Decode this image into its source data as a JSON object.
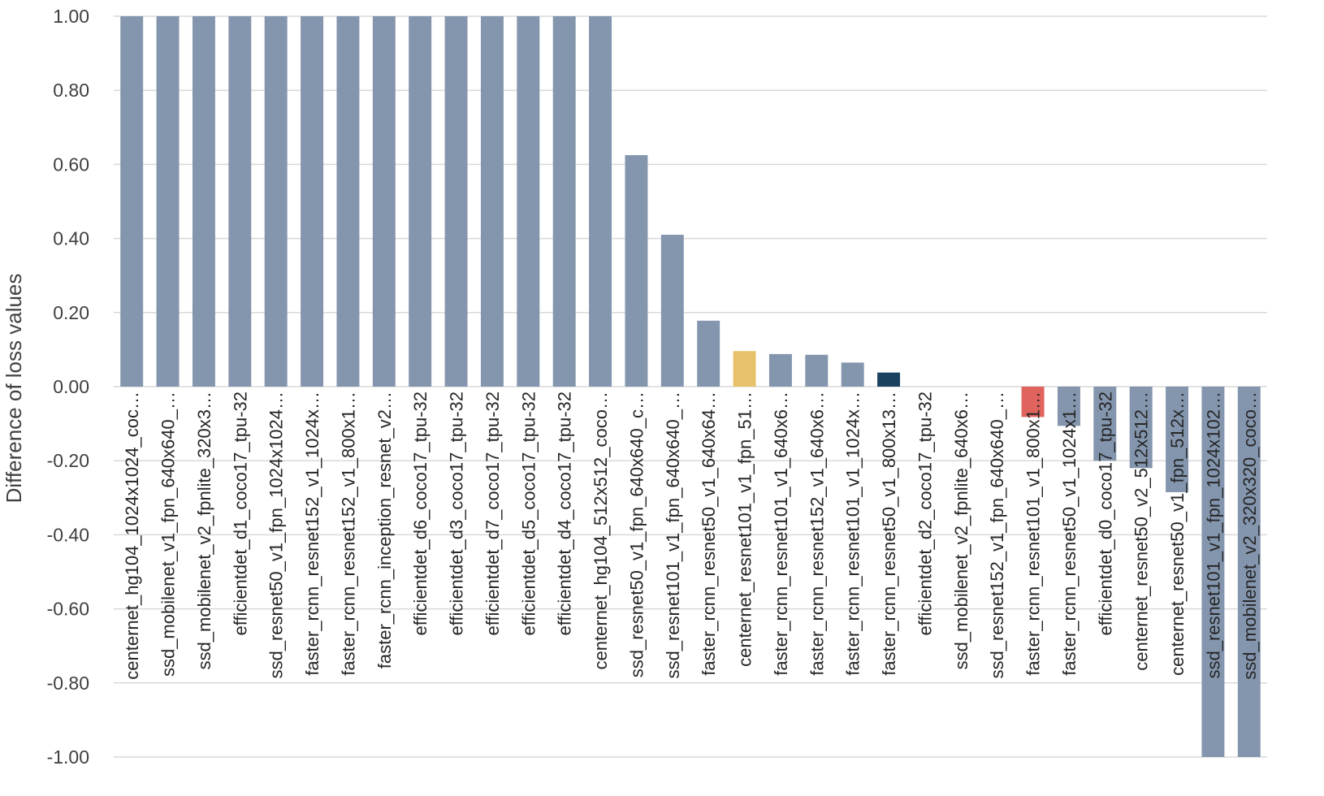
{
  "chart_data": {
    "type": "bar",
    "title": "",
    "xlabel": "",
    "ylabel": "Difference of loss values",
    "ylim": [
      -1.0,
      1.0
    ],
    "yticks": [
      "1.00",
      "0.80",
      "0.60",
      "0.40",
      "0.20",
      "0.00",
      "-0.20",
      "-0.40",
      "-0.60",
      "-0.80",
      "-1.00"
    ],
    "grid": true,
    "legend": "none",
    "categories": [
      "centernet_hg104_1024x1024_coc…",
      "ssd_mobilenet_v1_fpn_640x640_…",
      "ssd_mobilenet_v2_fpnlite_320x3…",
      "efficientdet_d1_coco17_tpu-32",
      "ssd_resnet50_v1_fpn_1024x1024…",
      "faster_rcnn_resnet152_v1_1024x…",
      "faster_rcnn_resnet152_v1_800x1…",
      "faster_rcnn_inception_resnet_v2…",
      "efficientdet_d6_coco17_tpu-32",
      "efficientdet_d3_coco17_tpu-32",
      "efficientdet_d7_coco17_tpu-32",
      "efficientdet_d5_coco17_tpu-32",
      "efficientdet_d4_coco17_tpu-32",
      "centernet_hg104_512x512_coco…",
      "ssd_resnet50_v1_fpn_640x640_c…",
      "ssd_resnet101_v1_fpn_640x640_…",
      "faster_rcnn_resnet50_v1_640x64…",
      "centernet_resnet101_v1_fpn_51…",
      "faster_rcnn_resnet101_v1_640x6…",
      "faster_rcnn_resnet152_v1_640x6…",
      "faster_rcnn_resnet101_v1_1024x…",
      "faster_rcnn_resnet50_v1_800x13…",
      "efficientdet_d2_coco17_tpu-32",
      "ssd_mobilenet_v2_fpnlite_640x6…",
      "ssd_resnet152_v1_fpn_640x640_…",
      "faster_rcnn_resnet101_v1_800x1…",
      "faster_rcnn_resnet50_v1_1024x1…",
      "efficientdet_d0_coco17_tpu-32",
      "centernet_resnet50_v2_512x512…",
      "centernet_resnet50_v1_fpn_512x…",
      "ssd_resnet101_v1_fpn_1024x102…",
      "ssd_mobilenet_v2_320x320_coco…"
    ],
    "values": [
      1.0,
      1.0,
      1.0,
      1.0,
      1.0,
      1.0,
      1.0,
      1.0,
      1.0,
      1.0,
      1.0,
      1.0,
      1.0,
      1.0,
      0.625,
      0.41,
      0.178,
      0.096,
      0.088,
      0.086,
      0.065,
      0.038,
      0.0,
      0.0,
      0.0,
      -0.082,
      -0.106,
      -0.2,
      -0.22,
      -0.285,
      -1.0,
      -1.0
    ],
    "colors": [
      "#8496ae",
      "#8496ae",
      "#8496ae",
      "#8496ae",
      "#8496ae",
      "#8496ae",
      "#8496ae",
      "#8496ae",
      "#8496ae",
      "#8496ae",
      "#8496ae",
      "#8496ae",
      "#8496ae",
      "#8496ae",
      "#8496ae",
      "#8496ae",
      "#8496ae",
      "#e8c26a",
      "#8496ae",
      "#8496ae",
      "#8496ae",
      "#1b4360",
      "#8496ae",
      "#8496ae",
      "#8496ae",
      "#e0635d",
      "#8496ae",
      "#8496ae",
      "#8496ae",
      "#8496ae",
      "#8496ae",
      "#8496ae"
    ],
    "gridline_color": "#d9d9d9",
    "text_color": "#404040"
  }
}
